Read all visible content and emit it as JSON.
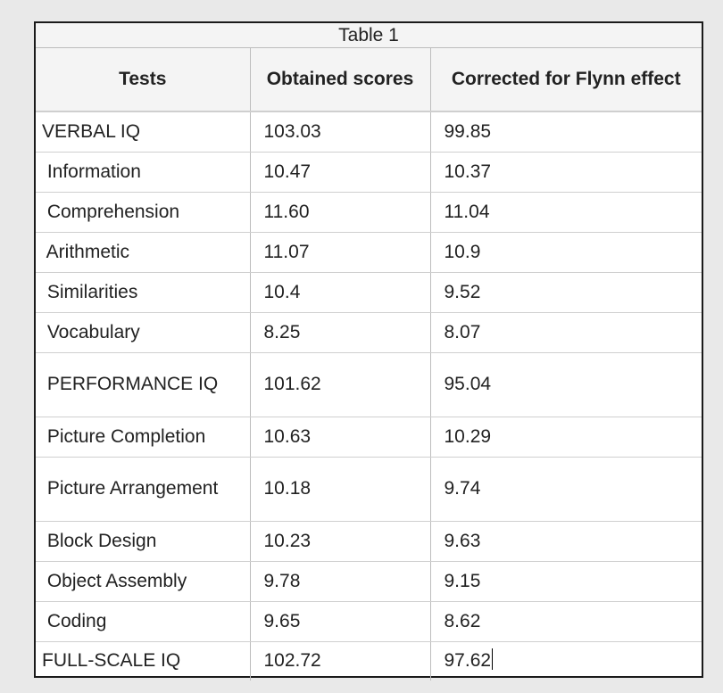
{
  "table": {
    "caption": "Table 1",
    "headers": [
      "Tests",
      "Obtained scores",
      "Corrected for Flynn effect"
    ],
    "rows": [
      {
        "test": "VERBAL IQ",
        "obtained": "103.03",
        "corrected": "99.85"
      },
      {
        "test": " Information",
        "obtained": "10.47",
        "corrected": "10.37"
      },
      {
        "test": " Comprehension",
        "obtained": "11.60",
        "corrected": "11.04"
      },
      {
        "test": " Arithmetic",
        "obtained": "11.07",
        "corrected": "10.9"
      },
      {
        "test": " Similarities",
        "obtained": "10.4",
        "corrected": "9.52"
      },
      {
        "test": " Vocabulary",
        "obtained": "8.25",
        "corrected": "8.07"
      },
      {
        "test": " PERFORMANCE IQ",
        "obtained": "101.62",
        "corrected": "95.04"
      },
      {
        "test": " Picture Completion",
        "obtained": "10.63",
        "corrected": "10.29"
      },
      {
        "test": " Picture Arrangement",
        "obtained": "10.18",
        "corrected": "9.74"
      },
      {
        "test": " Block Design",
        "obtained": "10.23",
        "corrected": "9.63"
      },
      {
        "test": " Object Assembly",
        "obtained": "9.78",
        "corrected": "9.15"
      },
      {
        "test": " Coding",
        "obtained": "9.65",
        "corrected": "8.62"
      },
      {
        "test": "FULL-SCALE IQ",
        "obtained": "102.72",
        "corrected": "97.62"
      }
    ]
  }
}
